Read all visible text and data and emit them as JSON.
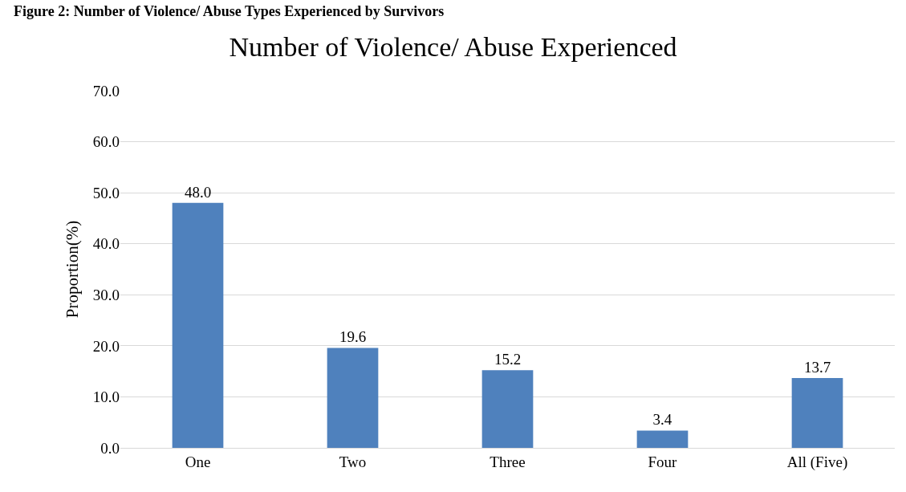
{
  "chart_data": {
    "type": "bar",
    "title": "Number of Violence/ Abuse Experienced",
    "ylabel": "Proportion(%)",
    "annotations": [
      "Figure 2: Number of Violence/ Abuse Types Experienced by Survivors"
    ],
    "categories": [
      "One",
      "Two",
      "Three",
      "Four",
      "All (Five)"
    ],
    "values": [
      48.0,
      19.6,
      15.2,
      3.4,
      13.7
    ],
    "value_labels": [
      "48.0",
      "19.6",
      "15.2",
      "3.4",
      "13.7"
    ],
    "color": "#4f81bd",
    "ylim": [
      0,
      70
    ],
    "yticks": [
      {
        "value": 0,
        "label": "0.0"
      },
      {
        "value": 10,
        "label": "10.0"
      },
      {
        "value": 20,
        "label": "20.0"
      },
      {
        "value": 30,
        "label": "30.0"
      },
      {
        "value": 40,
        "label": "40.0"
      },
      {
        "value": 50,
        "label": "50.0"
      },
      {
        "value": 60,
        "label": "60.0"
      },
      {
        "value": 70,
        "label": "70.0"
      }
    ],
    "grid": "y"
  }
}
